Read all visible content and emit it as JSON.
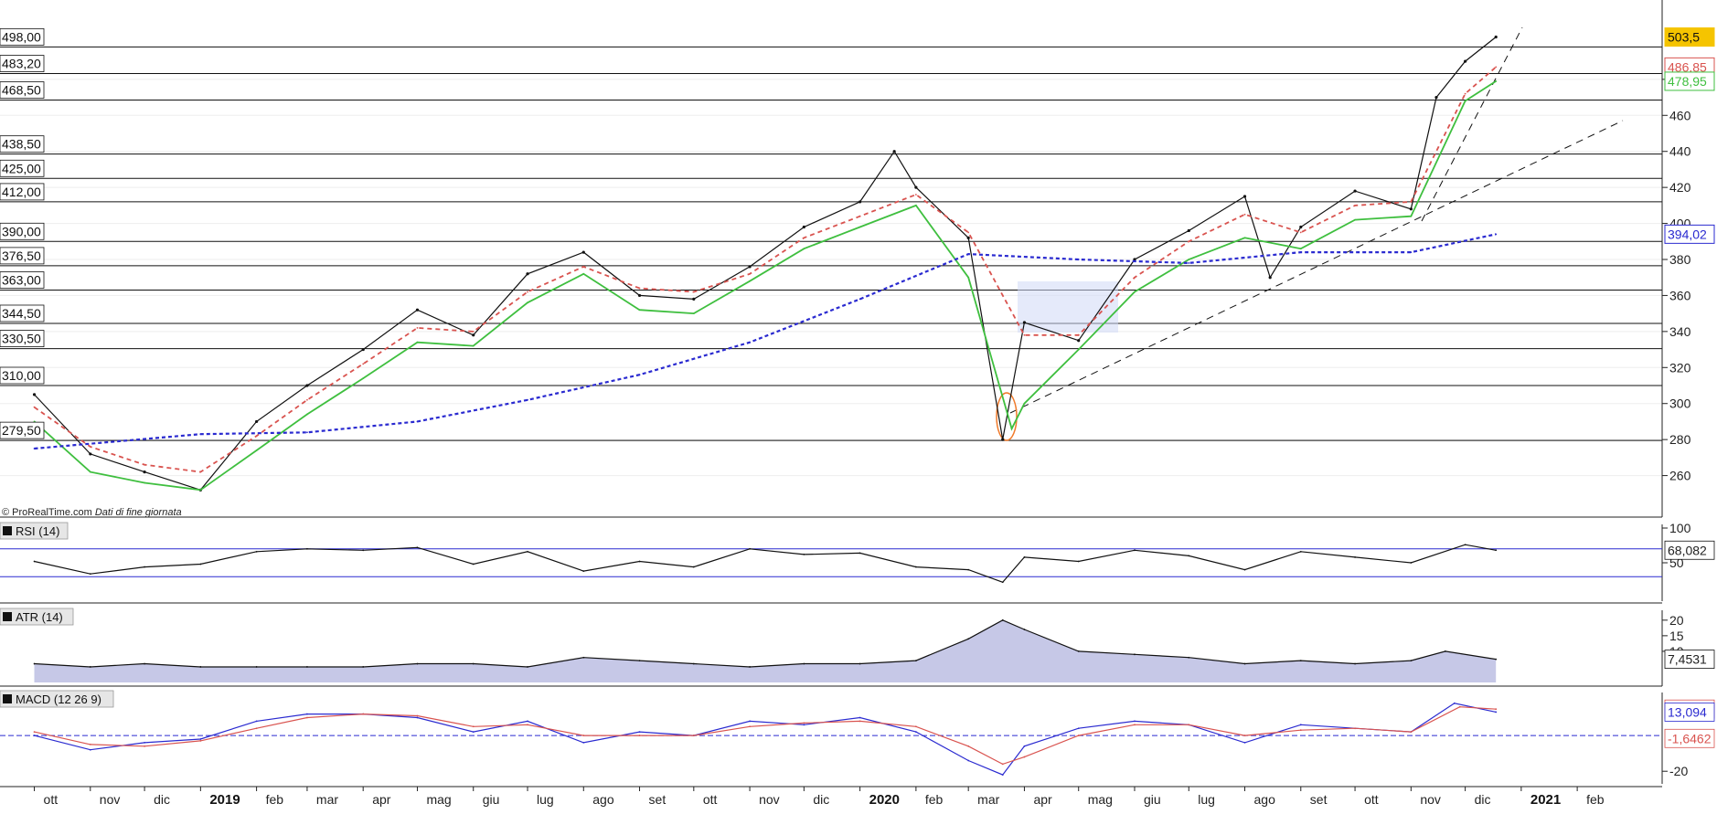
{
  "credit": "© ProRealTime.com",
  "credit_note": "Dati di fine giornata",
  "chart_data": [
    {
      "type": "line",
      "panel": "price",
      "ylim": [
        240,
        520
      ],
      "y_ticks": [
        "260",
        "280",
        "300",
        "320",
        "340",
        "360",
        "380",
        "400",
        "420",
        "440",
        "460",
        "480"
      ],
      "x_labels": [
        "ott",
        "nov",
        "dic",
        "2019",
        "feb",
        "mar",
        "apr",
        "mag",
        "giu",
        "lug",
        "ago",
        "set",
        "ott",
        "nov",
        "dic",
        "2020",
        "feb",
        "mar",
        "apr",
        "mag",
        "giu",
        "lug",
        "ago",
        "set",
        "ott",
        "nov",
        "dic",
        "2021",
        "feb"
      ],
      "support_resistance_levels": [
        {
          "label": "498,00",
          "value": 498
        },
        {
          "label": "483,20",
          "value": 483.2
        },
        {
          "label": "468,50",
          "value": 468.5
        },
        {
          "label": "438,50",
          "value": 438.5
        },
        {
          "label": "425,00",
          "value": 425
        },
        {
          "label": "412,00",
          "value": 412
        },
        {
          "label": "390,00",
          "value": 390
        },
        {
          "label": "376,50",
          "value": 376.5
        },
        {
          "label": "363,00",
          "value": 363
        },
        {
          "label": "344,50",
          "value": 344.5
        },
        {
          "label": "330,50",
          "value": 330.5
        },
        {
          "label": "310,00",
          "value": 310
        },
        {
          "label": "279,50",
          "value": 279.5
        }
      ],
      "last_values": [
        {
          "label": "503,5",
          "color": "#f5c400"
        },
        {
          "label": "486,85",
          "color": "#d9534f"
        },
        {
          "label": "478,95",
          "color": "#3fbf3f"
        },
        {
          "label": "394,02",
          "color": "#2a2ad0"
        }
      ],
      "series": [
        {
          "color": "#111111",
          "x": [
            "2018-10-01",
            "2018-11-01",
            "2018-12-01",
            "2019-01-01",
            "2019-02-01",
            "2019-03-01",
            "2019-04-01",
            "2019-05-01",
            "2019-06-01",
            "2019-07-01",
            "2019-08-01",
            "2019-09-01",
            "2019-10-01",
            "2019-11-01",
            "2019-12-01",
            "2020-01-01",
            "2020-01-20",
            "2020-02-01",
            "2020-03-01",
            "2020-03-20",
            "2020-04-01",
            "2020-05-01",
            "2020-06-01",
            "2020-07-01",
            "2020-08-01",
            "2020-08-15",
            "2020-09-01",
            "2020-10-01",
            "2020-11-01",
            "2020-11-15",
            "2020-12-01",
            "2020-12-18"
          ],
          "values": [
            305,
            272,
            262,
            252,
            290,
            310,
            330,
            352,
            338,
            372,
            384,
            360,
            358,
            376,
            398,
            412,
            440,
            420,
            392,
            280,
            345,
            335,
            380,
            396,
            415,
            370,
            398,
            418,
            408,
            470,
            490,
            503.5
          ]
        },
        {
          "color": "#d9534f",
          "x": [
            "2018-10-01",
            "2018-11-01",
            "2018-12-01",
            "2019-01-01",
            "2019-02-01",
            "2019-03-01",
            "2019-04-01",
            "2019-05-01",
            "2019-06-01",
            "2019-07-01",
            "2019-08-01",
            "2019-09-01",
            "2019-10-01",
            "2019-11-01",
            "2019-12-01",
            "2020-01-01",
            "2020-02-01",
            "2020-03-01",
            "2020-04-01",
            "2020-05-01",
            "2020-06-01",
            "2020-07-01",
            "2020-08-01",
            "2020-09-01",
            "2020-10-01",
            "2020-11-01",
            "2020-12-01",
            "2020-12-18"
          ],
          "values": [
            298,
            276,
            266,
            262,
            282,
            302,
            322,
            342,
            340,
            362,
            376,
            364,
            362,
            372,
            392,
            404,
            416,
            395,
            338,
            338,
            370,
            390,
            405,
            395,
            410,
            412,
            472,
            486.85
          ]
        },
        {
          "color": "#3fbf3f",
          "x": [
            "2018-10-01",
            "2018-11-01",
            "2018-12-01",
            "2019-01-01",
            "2019-02-01",
            "2019-03-01",
            "2019-04-01",
            "2019-05-01",
            "2019-06-01",
            "2019-07-01",
            "2019-08-01",
            "2019-09-01",
            "2019-10-01",
            "2019-11-01",
            "2019-12-01",
            "2020-01-01",
            "2020-02-01",
            "2020-03-01",
            "2020-03-25",
            "2020-04-01",
            "2020-05-01",
            "2020-06-01",
            "2020-07-01",
            "2020-08-01",
            "2020-09-01",
            "2020-10-01",
            "2020-11-01",
            "2020-12-01",
            "2020-12-18"
          ],
          "values": [
            290,
            262,
            256,
            252,
            274,
            294,
            314,
            334,
            332,
            356,
            372,
            352,
            350,
            368,
            386,
            398,
            410,
            370,
            286,
            300,
            330,
            362,
            380,
            392,
            386,
            402,
            404,
            468,
            478.95
          ]
        },
        {
          "color": "#2a2ad0",
          "x": [
            "2018-10-01",
            "2019-01-01",
            "2019-03-01",
            "2019-05-01",
            "2019-07-01",
            "2019-09-01",
            "2019-11-01",
            "2020-01-01",
            "2020-03-01",
            "2020-05-01",
            "2020-07-01",
            "2020-09-01",
            "2020-11-01",
            "2020-12-18"
          ],
          "values": [
            275,
            283,
            284,
            290,
            302,
            316,
            334,
            358,
            383,
            380,
            378,
            384,
            384,
            394.02
          ]
        }
      ]
    },
    {
      "type": "line",
      "panel": "indicator",
      "title": "RSI (14)",
      "y_ticks": [
        "100",
        "50"
      ],
      "ylim": [
        0,
        100
      ],
      "bands": [
        70,
        30
      ],
      "last_value": "68,082",
      "series": [
        {
          "color": "#111111",
          "x": [
            "2018-10-01",
            "2018-11-01",
            "2018-12-01",
            "2019-01-01",
            "2019-02-01",
            "2019-03-01",
            "2019-04-01",
            "2019-05-01",
            "2019-06-01",
            "2019-07-01",
            "2019-08-01",
            "2019-09-01",
            "2019-10-01",
            "2019-11-01",
            "2019-12-01",
            "2020-01-01",
            "2020-02-01",
            "2020-03-01",
            "2020-03-20",
            "2020-04-01",
            "2020-05-01",
            "2020-06-01",
            "2020-07-01",
            "2020-08-01",
            "2020-09-01",
            "2020-10-01",
            "2020-11-01",
            "2020-12-01",
            "2020-12-18"
          ],
          "values": [
            52,
            34,
            44,
            48,
            66,
            70,
            68,
            72,
            48,
            66,
            38,
            52,
            44,
            70,
            62,
            64,
            44,
            40,
            22,
            58,
            52,
            68,
            60,
            40,
            66,
            58,
            50,
            76,
            68.082
          ]
        }
      ]
    },
    {
      "type": "area",
      "panel": "indicator",
      "title": "ATR (14)",
      "y_ticks": [
        "20",
        "15",
        "10"
      ],
      "ylim": [
        0,
        22
      ],
      "last_value": "7,4531",
      "series": [
        {
          "color": "#111111",
          "x": [
            "2018-10-01",
            "2018-11-01",
            "2018-12-01",
            "2019-01-01",
            "2019-02-01",
            "2019-03-01",
            "2019-04-01",
            "2019-05-01",
            "2019-06-01",
            "2019-07-01",
            "2019-08-01",
            "2019-09-01",
            "2019-10-01",
            "2019-11-01",
            "2019-12-01",
            "2020-01-01",
            "2020-02-01",
            "2020-03-01",
            "2020-03-20",
            "2020-04-01",
            "2020-05-01",
            "2020-06-01",
            "2020-07-01",
            "2020-08-01",
            "2020-09-01",
            "2020-10-01",
            "2020-11-01",
            "2020-11-20",
            "2020-12-18"
          ],
          "values": [
            6,
            5,
            6,
            5,
            5,
            5,
            5,
            6,
            6,
            5,
            8,
            7,
            6,
            5,
            6,
            6,
            7,
            14,
            20,
            17,
            10,
            9,
            8,
            6,
            7,
            6,
            7,
            10,
            7.4531
          ]
        }
      ]
    },
    {
      "type": "line",
      "panel": "indicator",
      "title": "MACD (12 26 9)",
      "y_ticks": [
        "-20"
      ],
      "ylim": [
        -25,
        22
      ],
      "last_values": [
        {
          "label": "14,740",
          "color": "#d9534f"
        },
        {
          "label": "13,094",
          "color": "#2a2ad0"
        },
        {
          "label": "-1,6462",
          "color": "#d9534f"
        }
      ],
      "series": [
        {
          "color": "#2a2ad0",
          "x": [
            "2018-10-01",
            "2018-11-01",
            "2018-12-01",
            "2019-01-01",
            "2019-02-01",
            "2019-03-01",
            "2019-04-01",
            "2019-05-01",
            "2019-06-01",
            "2019-07-01",
            "2019-08-01",
            "2019-09-01",
            "2019-10-01",
            "2019-11-01",
            "2019-12-01",
            "2020-01-01",
            "2020-02-01",
            "2020-03-01",
            "2020-03-20",
            "2020-04-01",
            "2020-05-01",
            "2020-06-01",
            "2020-07-01",
            "2020-08-01",
            "2020-09-01",
            "2020-10-01",
            "2020-11-01",
            "2020-11-25",
            "2020-12-18"
          ],
          "values": [
            0,
            -8,
            -4,
            -2,
            8,
            12,
            12,
            10,
            2,
            8,
            -4,
            2,
            0,
            8,
            6,
            10,
            2,
            -14,
            -22,
            -6,
            4,
            8,
            6,
            -4,
            6,
            4,
            2,
            18,
            13.094
          ]
        },
        {
          "color": "#d9534f",
          "x": [
            "2018-10-01",
            "2018-11-01",
            "2018-12-01",
            "2019-01-01",
            "2019-02-01",
            "2019-03-01",
            "2019-04-01",
            "2019-05-01",
            "2019-06-01",
            "2019-07-01",
            "2019-08-01",
            "2019-09-01",
            "2019-10-01",
            "2019-11-01",
            "2019-12-01",
            "2020-01-01",
            "2020-02-01",
            "2020-03-01",
            "2020-03-20",
            "2020-04-01",
            "2020-05-01",
            "2020-06-01",
            "2020-07-01",
            "2020-08-01",
            "2020-09-01",
            "2020-10-01",
            "2020-11-01",
            "2020-11-28",
            "2020-12-18"
          ],
          "values": [
            2,
            -5,
            -6,
            -3,
            4,
            10,
            12,
            11,
            5,
            6,
            0,
            0,
            0,
            5,
            7,
            8,
            5,
            -6,
            -16,
            -12,
            0,
            6,
            6,
            0,
            3,
            4,
            2,
            16,
            14.74
          ]
        }
      ]
    }
  ]
}
